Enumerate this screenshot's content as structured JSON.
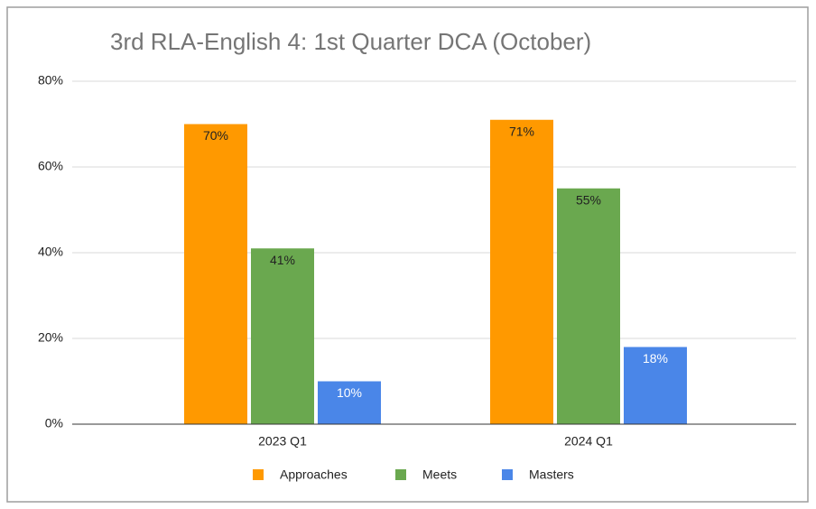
{
  "chart_data": {
    "type": "bar",
    "title": "3rd RLA-English 4: 1st Quarter DCA (October)",
    "categories": [
      "2023 Q1",
      "2024 Q1"
    ],
    "series": [
      {
        "name": "Approaches",
        "color": "#ff9900",
        "values": [
          70,
          71
        ],
        "value_labels": [
          "70%",
          "71%"
        ],
        "label_color": "#222222"
      },
      {
        "name": "Meets",
        "color": "#6aa84f",
        "values": [
          41,
          55
        ],
        "value_labels": [
          "41%",
          "55%"
        ],
        "label_color": "#222222"
      },
      {
        "name": "Masters",
        "color": "#4a86e8",
        "values": [
          10,
          18
        ],
        "value_labels": [
          "10%",
          "18%"
        ],
        "label_color": "#ffffff"
      }
    ],
    "ylim": [
      0,
      80
    ],
    "yticks": [
      {
        "value": 0,
        "label": "0%"
      },
      {
        "value": 20,
        "label": "20%"
      },
      {
        "value": 40,
        "label": "40%"
      },
      {
        "value": 60,
        "label": "60%"
      },
      {
        "value": 80,
        "label": "80%"
      }
    ],
    "grid": true,
    "legend": "bottom"
  }
}
